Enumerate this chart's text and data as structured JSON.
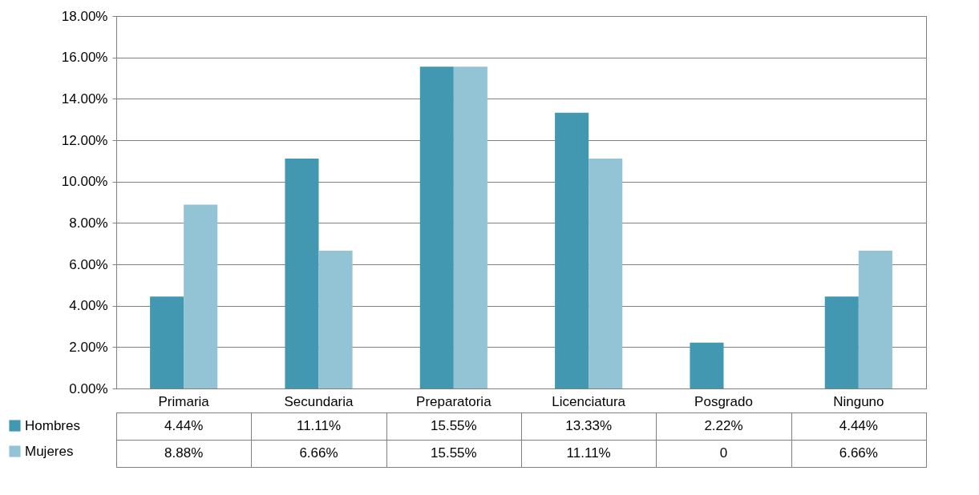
{
  "chart_data": {
    "type": "bar",
    "categories": [
      "Primaria",
      "Secundaria",
      "Preparatoria",
      "Licenciatura",
      "Posgrado",
      "Ninguno"
    ],
    "series": [
      {
        "name": "Hombres",
        "color": "#4198b0",
        "values": [
          4.44,
          11.11,
          15.55,
          13.33,
          2.22,
          4.44
        ],
        "value_labels": [
          "4.44%",
          "11.11%",
          "15.55%",
          "13.33%",
          "2.22%",
          "4.44%"
        ]
      },
      {
        "name": "Mujeres",
        "color": "#93c4d5",
        "values": [
          8.88,
          6.66,
          15.55,
          11.11,
          0,
          6.66
        ],
        "value_labels": [
          "8.88%",
          "6.66%",
          "15.55%",
          "11.11%",
          "0",
          "6.66%"
        ]
      }
    ],
    "ylim": [
      0,
      18
    ],
    "yticks": [
      {
        "value": 0,
        "label": "0.00%"
      },
      {
        "value": 2,
        "label": "2.00%"
      },
      {
        "value": 4,
        "label": "4.00%"
      },
      {
        "value": 6,
        "label": "6.00%"
      },
      {
        "value": 8,
        "label": "8.00%"
      },
      {
        "value": 10,
        "label": "10.00%"
      },
      {
        "value": 12,
        "label": "12.00%"
      },
      {
        "value": 14,
        "label": "14.00%"
      },
      {
        "value": 16,
        "label": "16.00%"
      },
      {
        "value": 18,
        "label": "18.00%"
      }
    ],
    "grid": "y",
    "legend": "bottom left"
  }
}
